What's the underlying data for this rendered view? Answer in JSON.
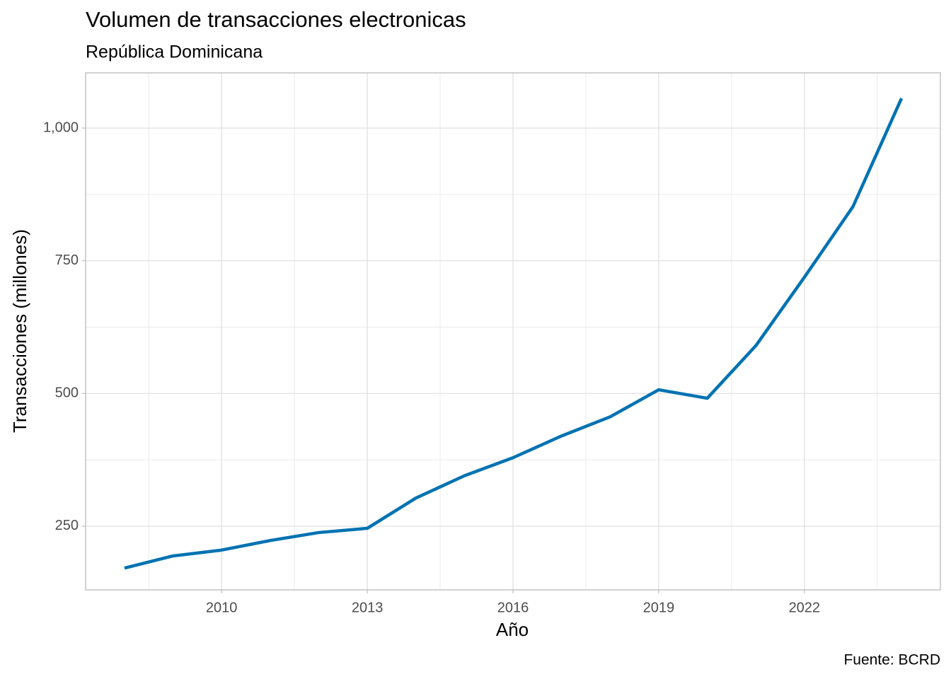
{
  "chart_data": {
    "type": "line",
    "title": "Volumen de transacciones electronicas",
    "subtitle": "República Dominicana",
    "x_label": "Año",
    "y_label": "Transacciones (millones)",
    "caption": "Fuente: BCRD",
    "x": [
      2008,
      2009,
      2010,
      2011,
      2012,
      2013,
      2014,
      2015,
      2016,
      2017,
      2018,
      2019,
      2020,
      2021,
      2022,
      2023,
      2024
    ],
    "series": [
      {
        "color": "#0072b2",
        "values": [
          171,
          194,
          205,
          223,
          238,
          246,
          303,
          345,
          379,
          420,
          456,
          507,
          491,
          590,
          719,
          852,
          1056
        ]
      }
    ],
    "xlim": [
      2007.2,
      2024.8
    ],
    "xticks": [
      2010,
      2013,
      2016,
      2019,
      2022
    ],
    "ylim": [
      130,
      1104
    ],
    "yticks": [
      250,
      500,
      750,
      {
        "value": 1000,
        "label": "1,000"
      }
    ],
    "grid": true
  }
}
